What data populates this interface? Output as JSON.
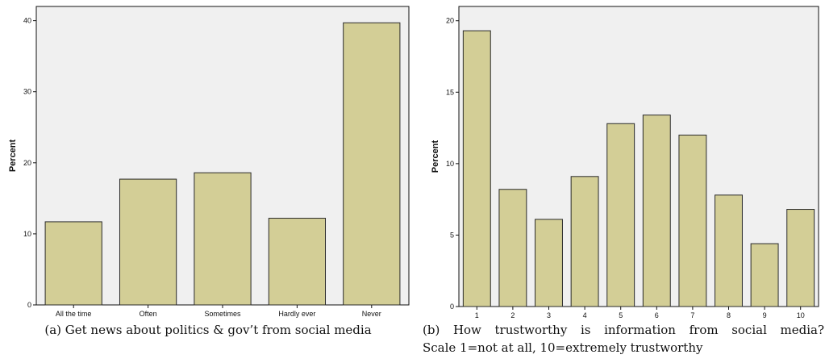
{
  "colors": {
    "plot_background": "#f0f0f0",
    "bar_fill": "#d3ce96",
    "bar_stroke": "#2a2a2a",
    "axis": "#111111"
  },
  "chart_data": [
    {
      "type": "bar",
      "caption": "(a) Get news about politics & gov’t from social media",
      "xlabel": "",
      "ylabel": "Percent",
      "categories": [
        "All the time",
        "Often",
        "Sometimes",
        "Hardly ever",
        "Never"
      ],
      "values": [
        11.7,
        17.7,
        18.6,
        12.2,
        39.7
      ],
      "ylim": [
        0,
        42
      ],
      "yticks": [
        0,
        10,
        20,
        30,
        40
      ],
      "grid": false
    },
    {
      "type": "bar",
      "caption_line1": "(b)  How trustworthy is information from social media?",
      "caption_line2": "Scale 1=not at all, 10=extremely trustworthy",
      "xlabel": "",
      "ylabel": "Percent",
      "categories": [
        "1",
        "2",
        "3",
        "4",
        "5",
        "6",
        "7",
        "8",
        "9",
        "10"
      ],
      "values": [
        19.3,
        8.2,
        6.1,
        9.1,
        12.8,
        13.4,
        12.0,
        7.8,
        4.4,
        6.8
      ],
      "ylim": [
        0,
        21
      ],
      "yticks": [
        0,
        5,
        10,
        15,
        20
      ],
      "grid": false
    }
  ]
}
